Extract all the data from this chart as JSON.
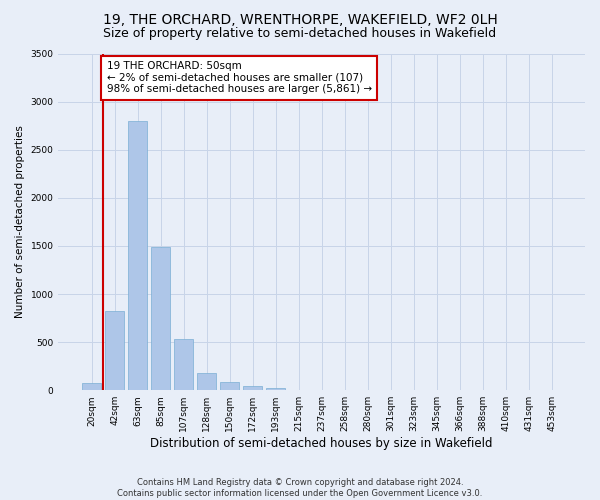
{
  "title": "19, THE ORCHARD, WRENTHORPE, WAKEFIELD, WF2 0LH",
  "subtitle": "Size of property relative to semi-detached houses in Wakefield",
  "xlabel": "Distribution of semi-detached houses by size in Wakefield",
  "ylabel": "Number of semi-detached properties",
  "categories": [
    "20sqm",
    "42sqm",
    "63sqm",
    "85sqm",
    "107sqm",
    "128sqm",
    "150sqm",
    "172sqm",
    "193sqm",
    "215sqm",
    "237sqm",
    "258sqm",
    "280sqm",
    "301sqm",
    "323sqm",
    "345sqm",
    "366sqm",
    "388sqm",
    "410sqm",
    "431sqm",
    "453sqm"
  ],
  "values": [
    75,
    820,
    2800,
    1490,
    530,
    175,
    85,
    45,
    20,
    5,
    0,
    0,
    0,
    0,
    0,
    0,
    0,
    0,
    0,
    0,
    0
  ],
  "bar_color": "#aec6e8",
  "bar_edge_color": "#7aaed4",
  "property_line_x": 0.5,
  "annotation_text": "19 THE ORCHARD: 50sqm\n← 2% of semi-detached houses are smaller (107)\n98% of semi-detached houses are larger (5,861) →",
  "annotation_box_color": "#ffffff",
  "annotation_border_color": "#cc0000",
  "vline_color": "#cc0000",
  "ylim": [
    0,
    3500
  ],
  "yticks": [
    0,
    500,
    1000,
    1500,
    2000,
    2500,
    3000,
    3500
  ],
  "grid_color": "#c8d4e8",
  "bg_color": "#e8eef8",
  "footer": "Contains HM Land Registry data © Crown copyright and database right 2024.\nContains public sector information licensed under the Open Government Licence v3.0.",
  "title_fontsize": 10,
  "subtitle_fontsize": 9,
  "xlabel_fontsize": 8.5,
  "ylabel_fontsize": 7.5,
  "tick_fontsize": 6.5,
  "annotation_fontsize": 7.5,
  "footer_fontsize": 6
}
